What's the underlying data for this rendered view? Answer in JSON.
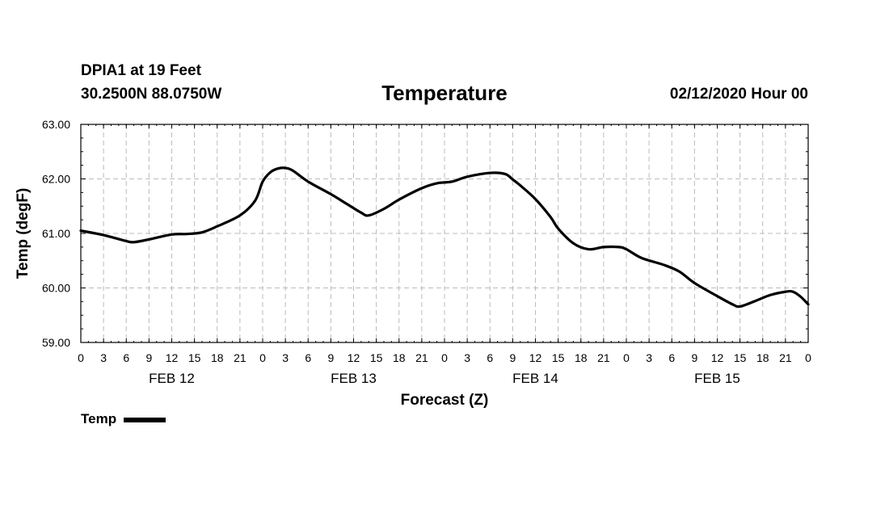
{
  "header": {
    "station": "DPIA1 at 19 Feet",
    "coords": "30.2500N 88.0750W",
    "title": "Temperature",
    "datetime": "02/12/2020 Hour 00"
  },
  "legend": {
    "label": "Temp"
  },
  "colors": {
    "line": "#000000",
    "grid": "#bbbbbb",
    "background": "#ffffff"
  },
  "chart_data": {
    "type": "line",
    "title": "Temperature",
    "xlabel": "Forecast (Z)",
    "ylabel": "Temp (degF)",
    "ylim": [
      59.0,
      63.0
    ],
    "yticks": [
      "59.00",
      "60.00",
      "61.00",
      "62.00",
      "63.00"
    ],
    "xlim": [
      0,
      96
    ],
    "xtick_hours": [
      0,
      3,
      6,
      9,
      12,
      15,
      18,
      21,
      24,
      27,
      30,
      33,
      36,
      39,
      42,
      45,
      48,
      51,
      54,
      57,
      60,
      63,
      66,
      69,
      72,
      75,
      78,
      81,
      84,
      87,
      90,
      93,
      96
    ],
    "xtick_labels": [
      "0",
      "3",
      "6",
      "9",
      "12",
      "15",
      "18",
      "21",
      "0",
      "3",
      "6",
      "9",
      "12",
      "15",
      "18",
      "21",
      "0",
      "3",
      "6",
      "9",
      "12",
      "15",
      "18",
      "21",
      "0",
      "3",
      "6",
      "9",
      "12",
      "15",
      "18",
      "21",
      "0"
    ],
    "day_labels": [
      {
        "label": "FEB 12",
        "hour": 12
      },
      {
        "label": "FEB 13",
        "hour": 36
      },
      {
        "label": "FEB 14",
        "hour": 60
      },
      {
        "label": "FEB 15",
        "hour": 84
      }
    ],
    "series": [
      {
        "name": "Temp",
        "x": [
          0,
          3,
          6,
          7,
          9,
          12,
          14,
          16,
          18,
          21,
          23,
          24,
          25,
          26,
          27,
          28,
          30,
          33,
          35,
          37,
          38,
          40,
          42,
          45,
          47,
          49,
          51,
          54,
          56,
          57,
          58,
          60,
          62,
          63,
          65,
          67,
          69,
          71,
          72,
          74,
          77,
          79,
          81,
          84,
          86,
          87,
          89,
          91,
          93,
          94,
          95,
          96
        ],
        "y": [
          61.05,
          60.97,
          60.86,
          60.84,
          60.89,
          60.98,
          60.99,
          61.02,
          61.13,
          61.33,
          61.6,
          61.95,
          62.12,
          62.19,
          62.2,
          62.15,
          61.95,
          61.72,
          61.55,
          61.38,
          61.33,
          61.45,
          61.62,
          61.83,
          61.92,
          61.95,
          62.04,
          62.11,
          62.09,
          61.99,
          61.88,
          61.63,
          61.3,
          61.09,
          60.82,
          60.71,
          60.75,
          60.75,
          60.71,
          60.55,
          60.42,
          60.3,
          60.09,
          59.85,
          59.7,
          59.66,
          59.76,
          59.87,
          59.93,
          59.93,
          59.84,
          59.7
        ]
      }
    ]
  }
}
